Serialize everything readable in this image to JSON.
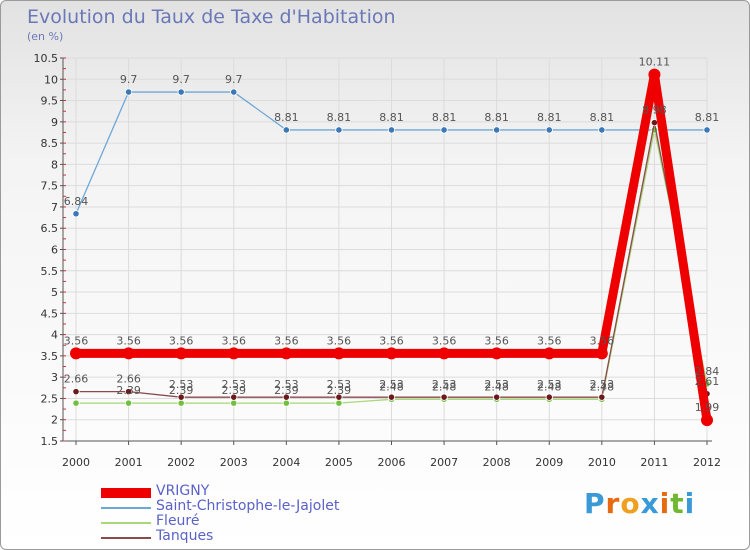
{
  "chart_data": {
    "type": "line",
    "title": "Evolution du Taux de Taxe d'Habitation",
    "subtitle": "(en %)",
    "categories": [
      "2000",
      "2001",
      "2002",
      "2003",
      "2004",
      "2005",
      "2006",
      "2007",
      "2008",
      "2009",
      "2010",
      "2011",
      "2012"
    ],
    "ylim": [
      1.5,
      10.5
    ],
    "yticks": [
      "1.5",
      "2",
      "2.5",
      "3",
      "3.5",
      "4",
      "4.5",
      "5",
      "5.5",
      "6",
      "6.5",
      "7",
      "7.5",
      "8",
      "8.5",
      "9",
      "9.5",
      "10",
      "10.5"
    ],
    "series": [
      {
        "name": "Saint-Christophe-le-Jajolet",
        "color": "#6ea8d8",
        "point": "#3a78b8",
        "values": [
          6.84,
          9.7,
          9.7,
          9.7,
          8.81,
          8.81,
          8.81,
          8.81,
          8.81,
          8.81,
          8.81,
          8.81,
          8.81
        ],
        "labels": [
          "6.84",
          "9.7",
          "9.7",
          "9.7",
          "8.81",
          "8.81",
          "8.81",
          "8.81",
          "8.81",
          "8.81",
          "8.81",
          "",
          "8.81"
        ]
      },
      {
        "name": "Fleuré",
        "color": "#a8d878",
        "point": "#70c040",
        "values": [
          2.39,
          2.39,
          2.39,
          2.39,
          2.39,
          2.39,
          2.48,
          2.48,
          2.48,
          2.48,
          2.48,
          8.81,
          2.84
        ],
        "labels": [
          "",
          "2.39",
          "2.39",
          "2.39",
          "2.39",
          "2.39",
          "2.48",
          "2.48",
          "2.48",
          "2.48",
          "2.48",
          "",
          "2.84"
        ]
      },
      {
        "name": "Tanques",
        "color": "#8a4a4a",
        "point": "#6a1a1a",
        "values": [
          2.66,
          2.66,
          2.53,
          2.53,
          2.53,
          2.53,
          2.53,
          2.53,
          2.53,
          2.53,
          2.53,
          8.98,
          2.61
        ],
        "labels": [
          "2.66",
          "2.66",
          "2.53",
          "2.53",
          "2.53",
          "2.53",
          "2.53",
          "2.53",
          "2.53",
          "2.53",
          "2.53",
          "8.98",
          "2.61"
        ]
      },
      {
        "name": "VRIGNY",
        "color": "#ee0000",
        "point": "#ee0000",
        "values": [
          3.56,
          3.56,
          3.56,
          3.56,
          3.56,
          3.56,
          3.56,
          3.56,
          3.56,
          3.56,
          3.56,
          10.11,
          1.99
        ],
        "labels": [
          "3.56",
          "3.56",
          "3.56",
          "3.56",
          "3.56",
          "3.56",
          "3.56",
          "3.56",
          "3.56",
          "3.56",
          "3.56",
          "10.11",
          "1.99"
        ]
      }
    ],
    "legend": [
      "VRIGNY",
      "Saint-Christophe-le-Jajolet",
      "Fleuré",
      "Tanques"
    ]
  },
  "legend_colors": [
    "#ee0000",
    "#6ea8d8",
    "#a8d878",
    "#8a4a4a"
  ],
  "logo": {
    "letters": [
      "P",
      "r",
      "o",
      "x",
      "i",
      "t",
      "i"
    ],
    "colors": [
      "#3a9ad8",
      "#e86a10",
      "#f0a020",
      "#3a9ad8",
      "#e86a10",
      "#70b830",
      "#3a9ad8"
    ]
  }
}
